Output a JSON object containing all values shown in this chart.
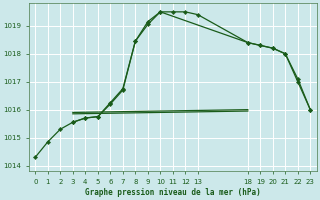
{
  "bg_color": "#cce8ea",
  "grid_color": "#ffffff",
  "line_color": "#1a5c1a",
  "title": "Graphe pression niveau de la mer (hPa)",
  "ylim": [
    1013.8,
    1019.8
  ],
  "yticks": [
    1014,
    1015,
    1016,
    1017,
    1018,
    1019
  ],
  "xtick_labels": [
    "0",
    "1",
    "2",
    "3",
    "4",
    "5",
    "6",
    "7",
    "8",
    "9",
    "10",
    "11",
    "12",
    "13",
    "18",
    "19",
    "20",
    "21",
    "22",
    "23"
  ],
  "xtick_positions": [
    0,
    1,
    2,
    3,
    4,
    5,
    6,
    7,
    8,
    9,
    10,
    11,
    12,
    13,
    17,
    18,
    19,
    20,
    21,
    22
  ],
  "xlim": [
    -0.5,
    22.5
  ],
  "series": [
    {
      "xpos": [
        0,
        1,
        2,
        3,
        4,
        5,
        6,
        7,
        8,
        9,
        10,
        11,
        12,
        13,
        17,
        18,
        19,
        20,
        21,
        22
      ],
      "y": [
        1014.3,
        1014.85,
        1015.3,
        1015.55,
        1015.7,
        1015.75,
        1016.25,
        1016.75,
        1018.45,
        1019.05,
        1019.5,
        1019.5,
        1019.5,
        1019.4,
        1018.4,
        1018.3,
        1018.2,
        1018.0,
        1017.1,
        1016.0
      ],
      "marker": "D",
      "markersize": 2.2,
      "linewidth": 0.9
    },
    {
      "xpos": [
        3,
        4,
        5,
        6,
        7,
        8,
        9,
        10,
        17,
        18,
        19,
        20,
        21,
        22
      ],
      "y": [
        1015.55,
        1015.7,
        1015.75,
        1016.2,
        1016.7,
        1018.45,
        1019.15,
        1019.5,
        1018.4,
        1018.3,
        1018.2,
        1018.0,
        1017.0,
        1016.0
      ],
      "marker": "D",
      "markersize": 2.2,
      "linewidth": 0.9
    },
    {
      "xpos": [
        3,
        17
      ],
      "y": [
        1015.85,
        1015.95
      ],
      "marker": null,
      "markersize": 0,
      "linewidth": 0.9
    },
    {
      "xpos": [
        3,
        17
      ],
      "y": [
        1015.9,
        1016.0
      ],
      "marker": null,
      "markersize": 0,
      "linewidth": 0.9
    }
  ]
}
